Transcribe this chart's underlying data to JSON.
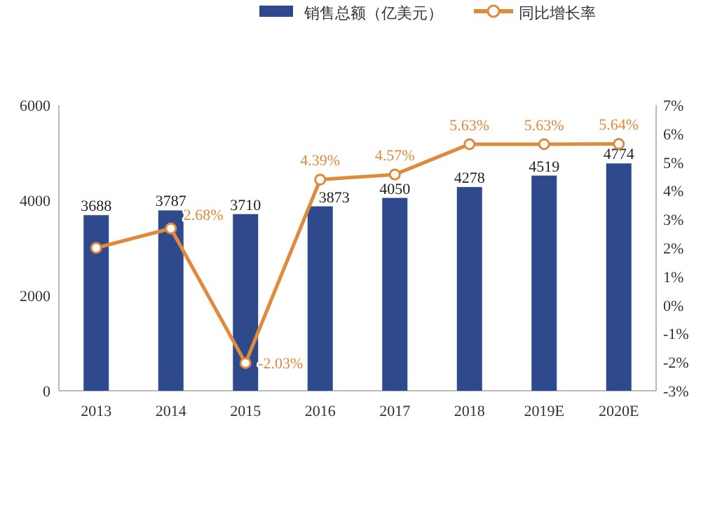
{
  "chart_data": {
    "type": "bar",
    "categories": [
      "2013",
      "2014",
      "2015",
      "2016",
      "2017",
      "2018",
      "2019E",
      "2020E"
    ],
    "series": [
      {
        "name": "销售总额（亿美元）",
        "color": "#2e4a8c",
        "values": [
          3688,
          3787,
          3710,
          3873,
          4050,
          4278,
          4519,
          4774
        ],
        "value_labels": [
          "3688",
          "3787",
          "3710",
          "3873",
          "4050",
          "4278",
          "4519",
          "4774"
        ]
      },
      {
        "name": "同比增长率",
        "type": "line",
        "axis": "y2",
        "color": "#e08a3c",
        "marker": "circle",
        "values": [
          2.0,
          2.68,
          -2.03,
          4.39,
          4.57,
          5.63,
          5.63,
          5.64
        ],
        "value_labels": [
          null,
          "2.68%",
          "-2.03%",
          "4.39%",
          "4.57%",
          "5.63%",
          "5.63%",
          "5.64%"
        ]
      }
    ],
    "ylim": [
      0,
      6000
    ],
    "yticks": [
      0,
      2000,
      4000,
      6000
    ],
    "y2lim": [
      -3,
      7
    ],
    "y2ticks": [
      {
        "value": -3,
        "label": "-3%"
      },
      {
        "value": -2,
        "label": "-2%"
      },
      {
        "value": -1,
        "label": "-1%"
      },
      {
        "value": 0,
        "label": "0%"
      },
      {
        "value": 1,
        "label": "1%"
      },
      {
        "value": 2,
        "label": "2%"
      },
      {
        "value": 3,
        "label": "3%"
      },
      {
        "value": 4,
        "label": "4%"
      },
      {
        "value": 5,
        "label": "5%"
      },
      {
        "value": 6,
        "label": "6%"
      },
      {
        "value": 7,
        "label": "7%"
      }
    ],
    "legend": "top",
    "grid": false
  }
}
